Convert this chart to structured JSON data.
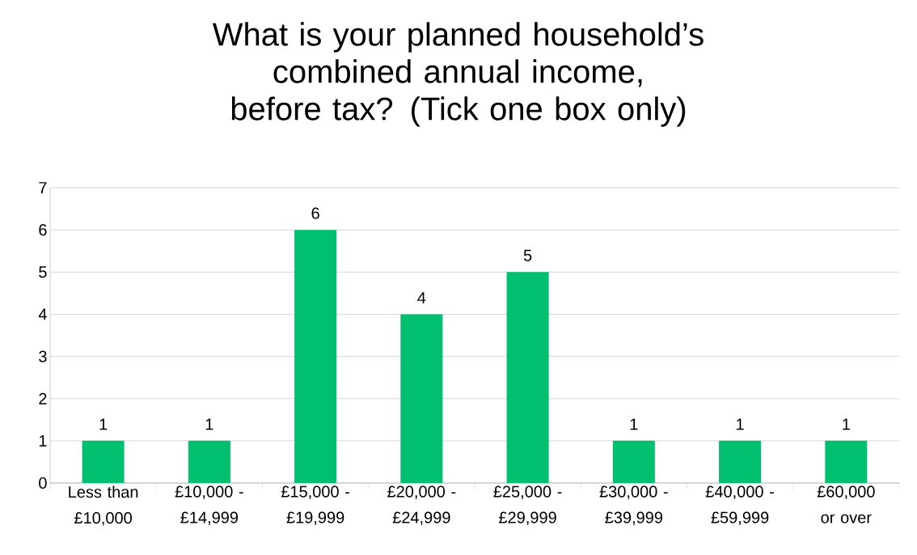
{
  "chart_data": {
    "type": "bar",
    "title": "What is your planned household’s combined annual income, before tax? (Tick one box only)",
    "categories": [
      "Less than £10,000",
      "£10,000 - £14,999",
      "£15,000 - £19,999",
      "£20,000 - £24,999",
      "£25,000 - £29,999",
      "£30,000 - £39,999",
      "£40,000 - £59,999",
      "£60,000 or over"
    ],
    "values": [
      1,
      1,
      6,
      4,
      5,
      1,
      1,
      1
    ],
    "color": "#00bf6f",
    "ylim": [
      0,
      7
    ],
    "yticks": [
      0,
      1,
      2,
      3,
      4,
      5,
      6,
      7
    ],
    "grid": "y",
    "data_labels": true
  }
}
